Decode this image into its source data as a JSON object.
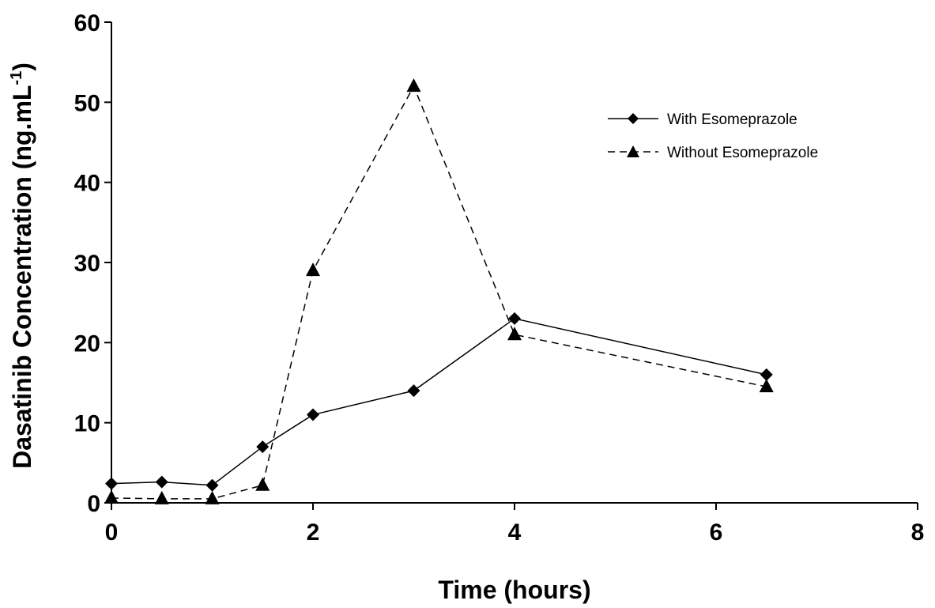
{
  "chart_data": {
    "type": "line",
    "title": "",
    "xlabel": "Time (hours)",
    "ylabel_main": "Dasatinib Concentration (ng.mL",
    "ylabel_sup": "-1",
    "ylabel_close": ")",
    "xlim": [
      0,
      8
    ],
    "ylim": [
      0,
      60
    ],
    "x_ticks": [
      0,
      2,
      4,
      6,
      8
    ],
    "y_ticks": [
      0,
      10,
      20,
      30,
      40,
      50,
      60
    ],
    "grid": false,
    "legend_position": "top-right",
    "series": [
      {
        "name": "With Esomeprazole",
        "marker": "diamond",
        "line": "solid",
        "x": [
          0,
          0.5,
          1,
          1.5,
          2,
          3,
          4,
          6.5
        ],
        "y": [
          2.4,
          2.6,
          2.2,
          7,
          11,
          14,
          23,
          16
        ]
      },
      {
        "name": "Without Esomeprazole",
        "marker": "triangle",
        "line": "dashed",
        "x": [
          0,
          0.5,
          1,
          1.5,
          2,
          3,
          4,
          6.5
        ],
        "y": [
          0.6,
          0.5,
          0.5,
          2.2,
          29,
          52,
          21,
          14.5
        ]
      }
    ]
  }
}
